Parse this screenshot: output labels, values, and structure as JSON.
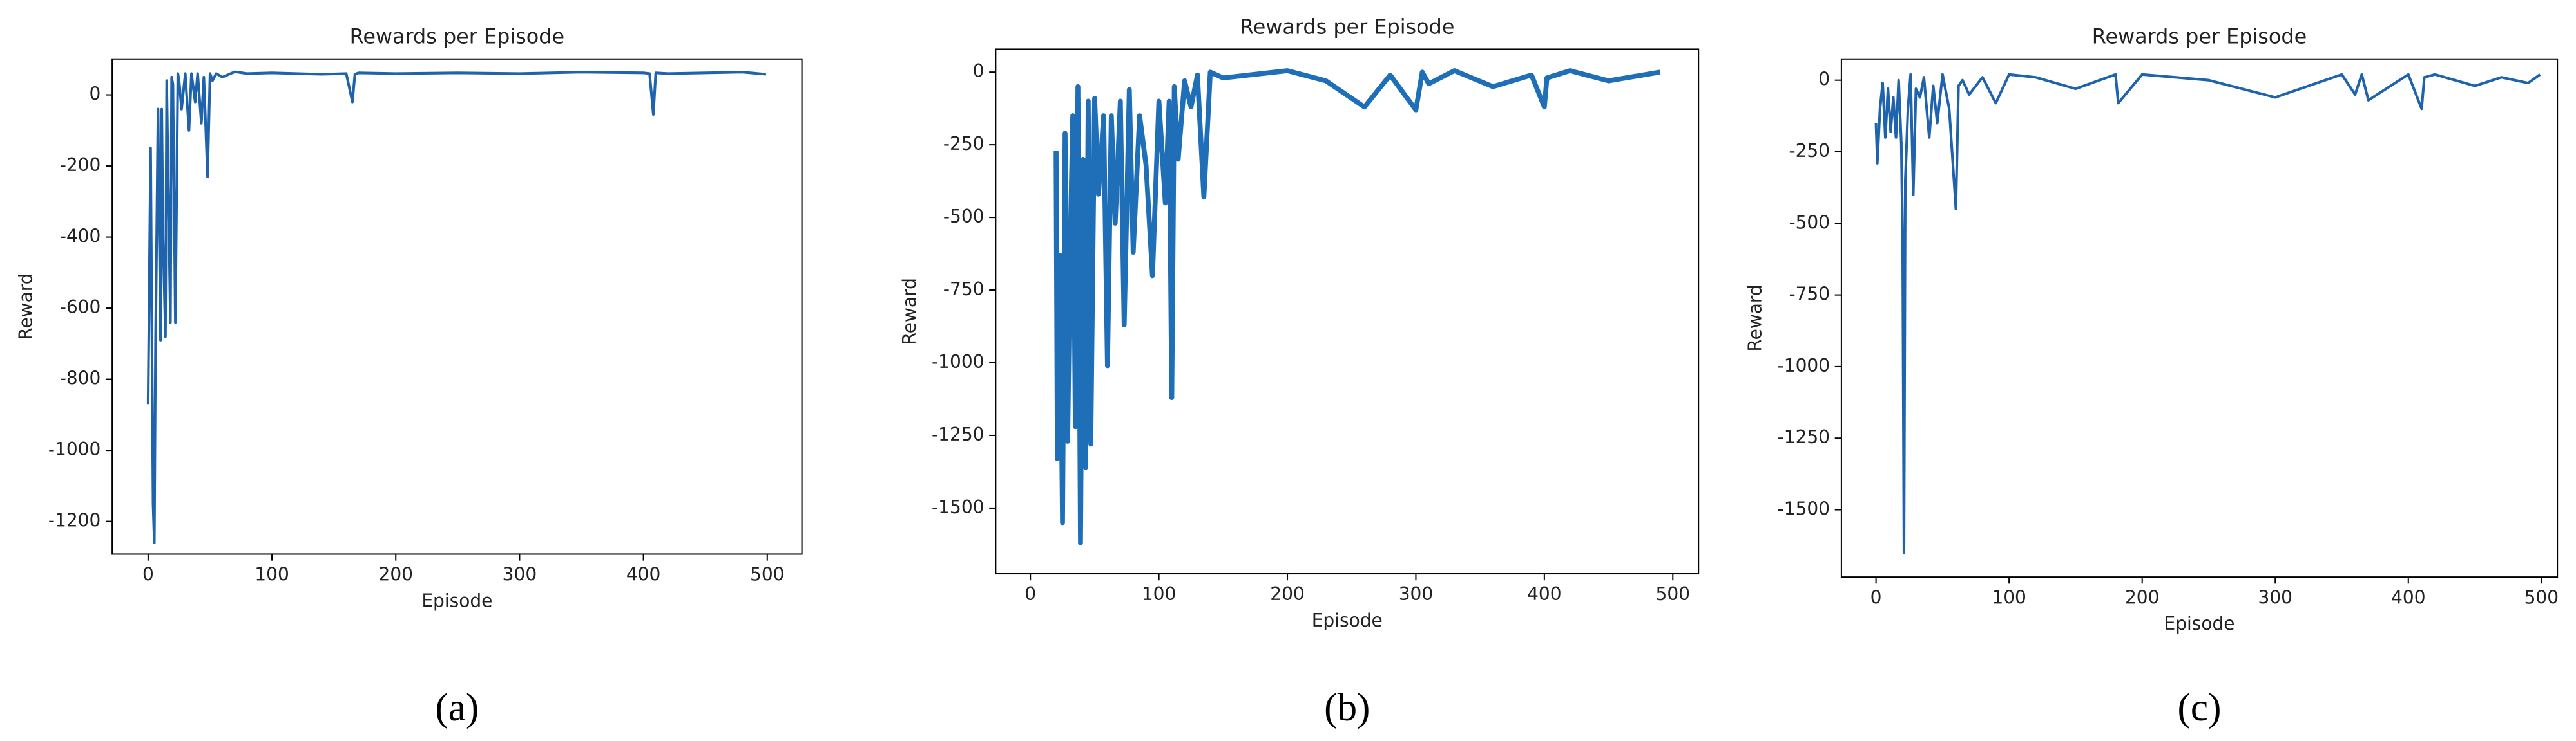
{
  "chart_data": [
    {
      "type": "line",
      "title": "Rewards per Episode",
      "xlabel": "Episode",
      "ylabel": "Reward",
      "caption": "(a)",
      "color": "#1f63ad",
      "x": [
        0,
        2,
        4,
        5,
        6,
        8,
        10,
        11,
        12,
        14,
        15,
        16,
        18,
        19,
        20,
        22,
        24,
        25,
        27,
        30,
        33,
        35,
        38,
        40,
        43,
        45,
        48,
        50,
        52,
        55,
        60,
        70,
        80,
        100,
        120,
        140,
        160,
        165,
        167,
        170,
        200,
        250,
        300,
        350,
        400,
        405,
        408,
        410,
        420,
        450,
        480,
        499
      ],
      "values": [
        -870,
        -150,
        -1150,
        -1260,
        -700,
        -40,
        -690,
        -40,
        -400,
        -680,
        40,
        -200,
        -640,
        50,
        30,
        -640,
        60,
        40,
        -40,
        60,
        -100,
        60,
        -20,
        60,
        -80,
        50,
        -230,
        60,
        40,
        60,
        50,
        65,
        60,
        62,
        60,
        58,
        60,
        -20,
        58,
        62,
        60,
        62,
        60,
        64,
        62,
        60,
        -55,
        62,
        60,
        62,
        64,
        58
      ],
      "xlim": [
        -29,
        528
      ],
      "ylim": [
        -1292,
        101
      ],
      "xticks": [
        0,
        100,
        200,
        300,
        400,
        500
      ],
      "yticks": [
        -1200,
        -1000,
        -800,
        -600,
        -400,
        -200,
        0
      ]
    },
    {
      "type": "line",
      "title": "Rewards per Episode",
      "xlabel": "Episode",
      "ylabel": "Reward",
      "caption": "(b)",
      "color": "#1f6fb8",
      "x": [
        20,
        21,
        23,
        25,
        27,
        29,
        31,
        33,
        35,
        37,
        39,
        41,
        43,
        45,
        47,
        50,
        53,
        57,
        60,
        63,
        66,
        70,
        73,
        77,
        80,
        85,
        90,
        95,
        100,
        105,
        108,
        110,
        112,
        115,
        120,
        125,
        130,
        135,
        140,
        150,
        170,
        200,
        230,
        260,
        280,
        300,
        305,
        310,
        330,
        360,
        390,
        400,
        402,
        420,
        450,
        490
      ],
      "values": [
        -270,
        -1330,
        -630,
        -1550,
        -210,
        -1270,
        -600,
        -150,
        -1220,
        -50,
        -1620,
        -300,
        -1360,
        -100,
        -1280,
        -90,
        -420,
        -150,
        -1010,
        -150,
        -520,
        -100,
        -870,
        -60,
        -620,
        -150,
        -320,
        -700,
        -100,
        -450,
        -100,
        -1120,
        -50,
        -300,
        -30,
        -120,
        -10,
        -430,
        0,
        -20,
        -10,
        5,
        -30,
        -120,
        -10,
        -130,
        0,
        -40,
        5,
        -50,
        -10,
        -120,
        -20,
        5,
        -30,
        0
      ],
      "xlim": [
        -27,
        520
      ],
      "ylim": [
        -1726,
        79
      ],
      "xticks": [
        0,
        100,
        200,
        300,
        400,
        500
      ],
      "yticks": [
        -1500,
        -1250,
        -1000,
        -750,
        -500,
        -250,
        0
      ]
    },
    {
      "type": "line",
      "title": "Rewards per Episode",
      "xlabel": "Episode",
      "ylabel": "Reward",
      "caption": "(c)",
      "color": "#1f63ad",
      "x": [
        0,
        1,
        3,
        5,
        7,
        9,
        11,
        13,
        15,
        17,
        19,
        20,
        21,
        22,
        24,
        26,
        28,
        30,
        33,
        36,
        40,
        43,
        46,
        50,
        55,
        60,
        62,
        65,
        70,
        80,
        90,
        100,
        120,
        150,
        180,
        182,
        200,
        250,
        300,
        350,
        360,
        365,
        370,
        400,
        410,
        412,
        420,
        450,
        470,
        490,
        499
      ],
      "values": [
        -150,
        -290,
        -100,
        -10,
        -200,
        -30,
        -180,
        -60,
        -200,
        0,
        -220,
        -560,
        -1650,
        -350,
        -100,
        20,
        -400,
        -30,
        -60,
        10,
        -200,
        -20,
        -150,
        20,
        -100,
        -450,
        -20,
        0,
        -50,
        10,
        -80,
        20,
        10,
        -30,
        20,
        -80,
        20,
        0,
        -60,
        20,
        -50,
        20,
        -70,
        20,
        -100,
        10,
        20,
        -20,
        10,
        -10,
        20
      ],
      "xlim": [
        -26,
        512
      ],
      "ylim": [
        -1735,
        74
      ],
      "xticks": [
        0,
        100,
        200,
        300,
        400,
        500
      ],
      "yticks": [
        -1500,
        -1250,
        -1000,
        -750,
        -500,
        -250,
        0
      ]
    }
  ]
}
